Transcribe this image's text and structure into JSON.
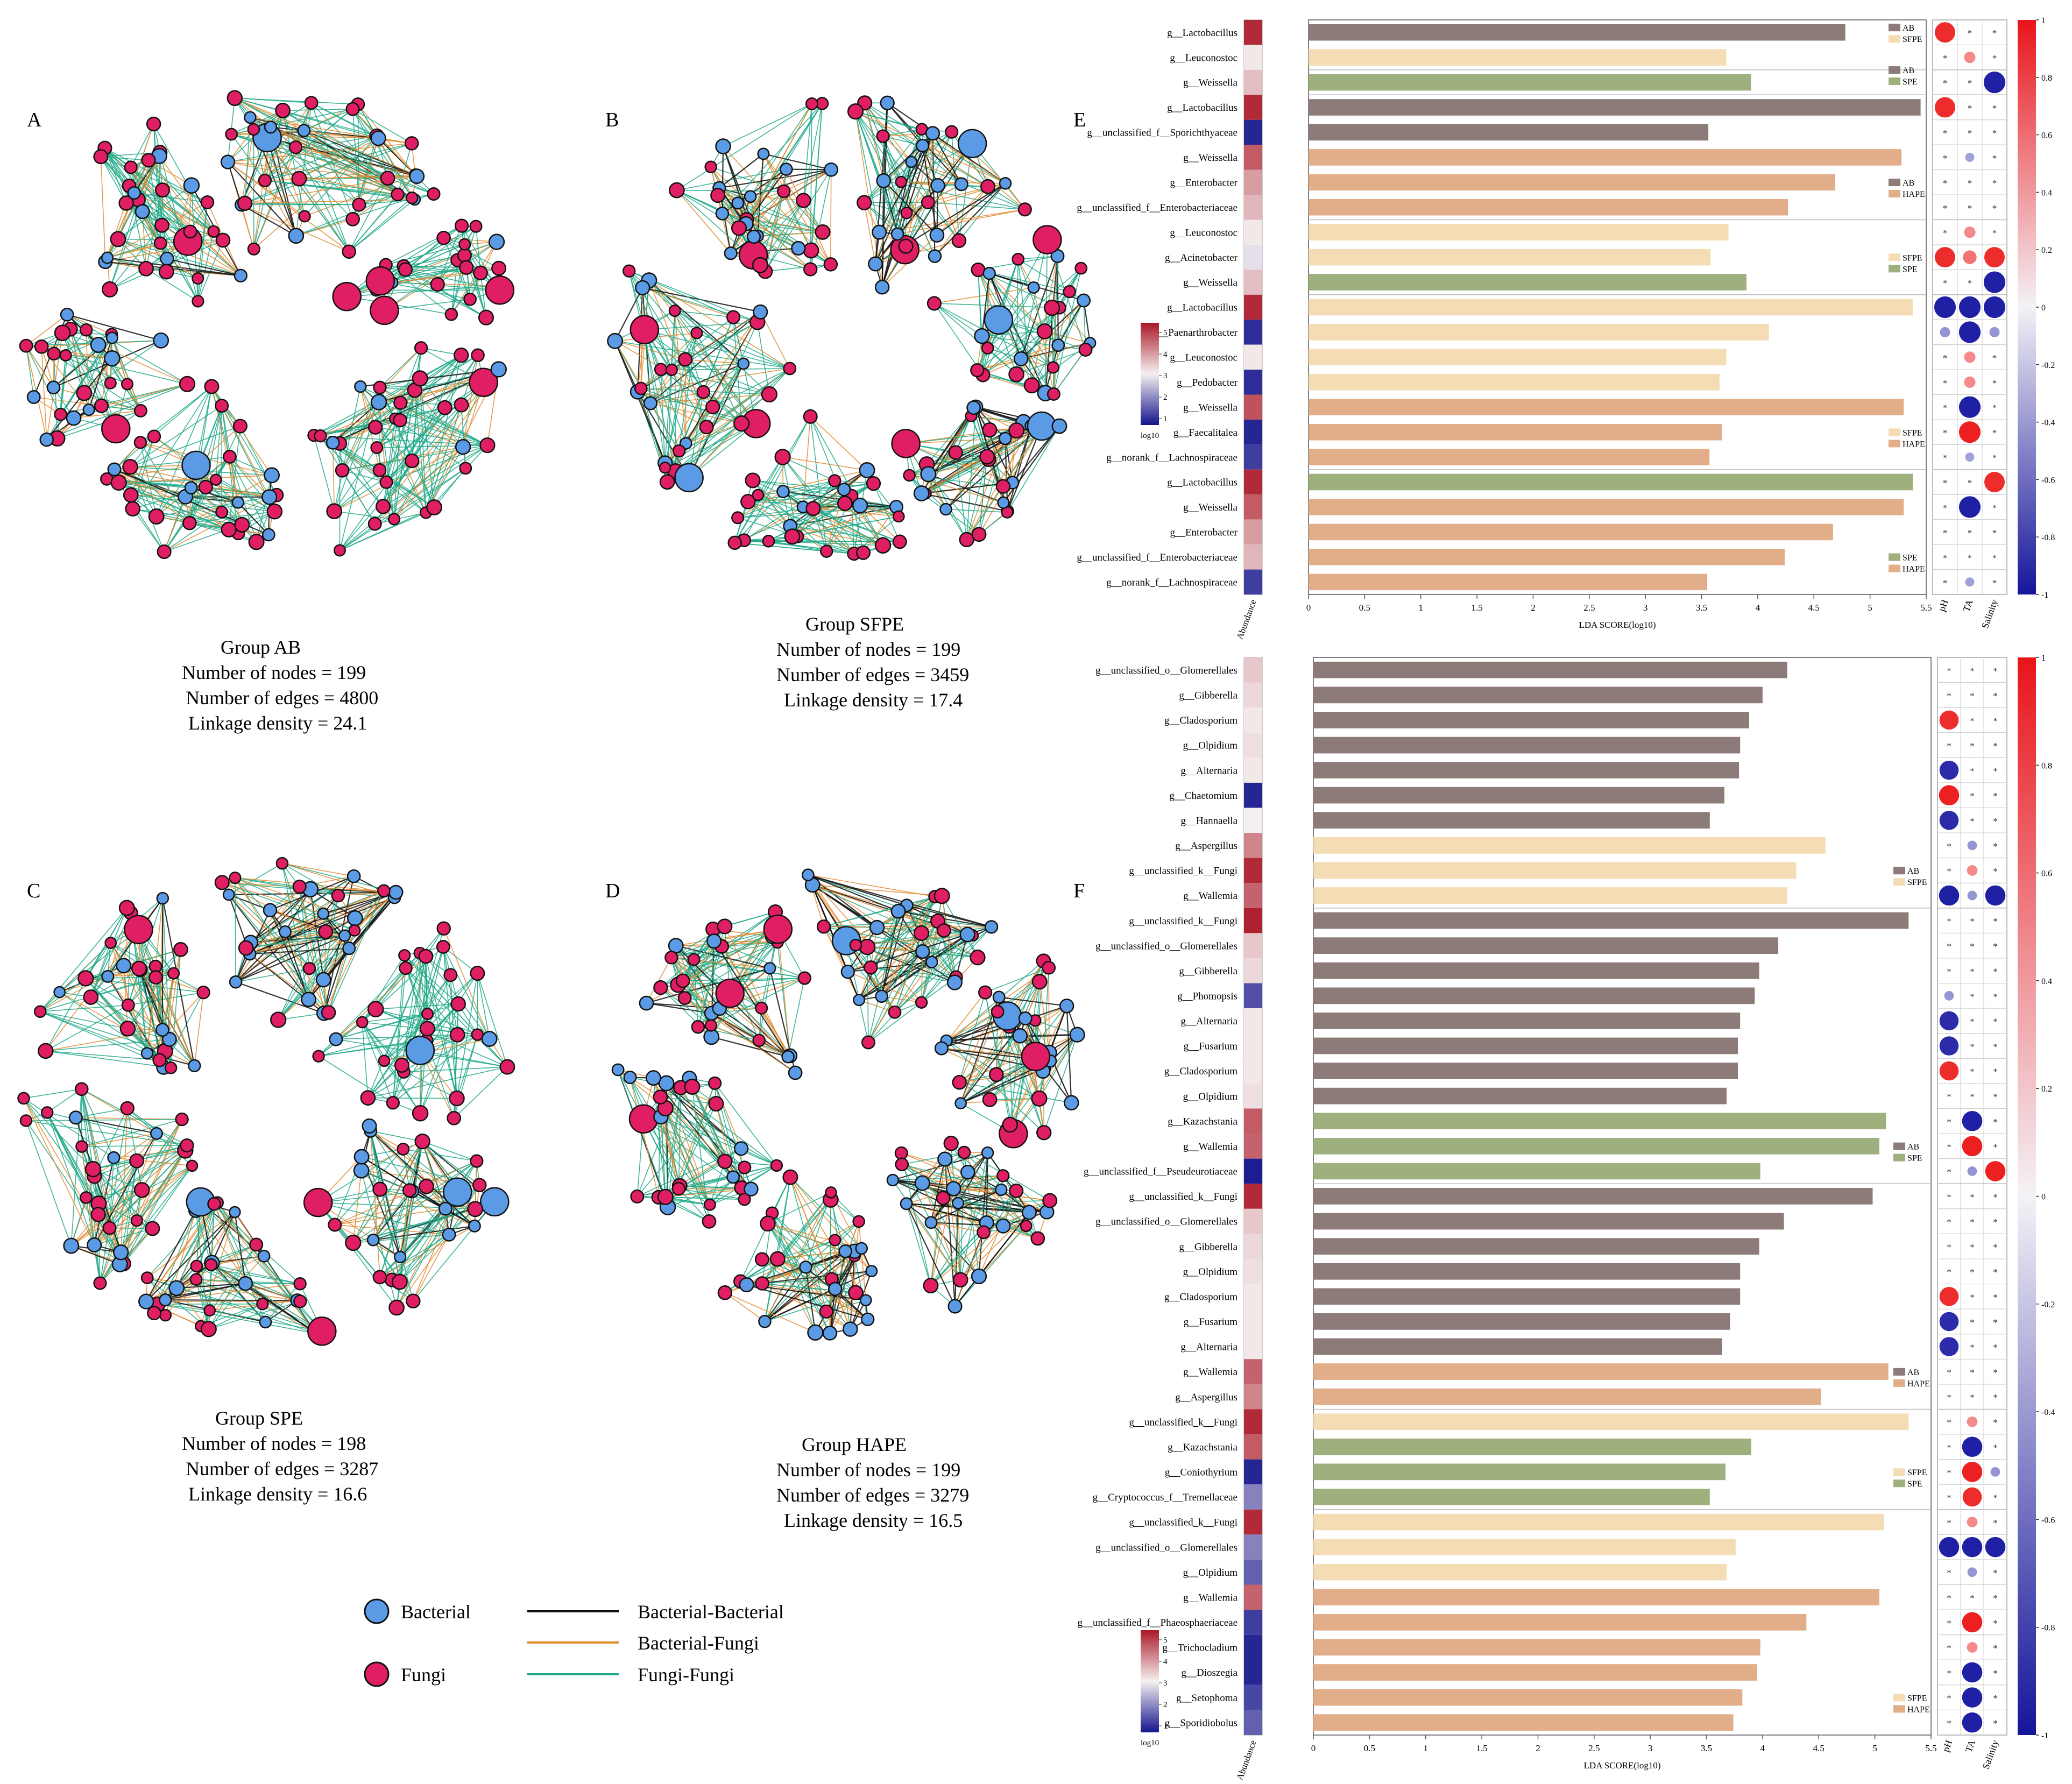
{
  "colors": {
    "bacterial": "#5B9BE6",
    "fungi": "#E01E63",
    "bb": "#111111",
    "bf": "#E08A2E",
    "ff": "#1FA887",
    "AB": "#8C7B78",
    "SFPE": "#F4DDB4",
    "SPE": "#9DB07D",
    "HAPE": "#E2AE8A"
  },
  "networks": [
    {
      "letter": "A",
      "group": "Group AB",
      "nodes": "Number of nodes  = 199",
      "edges": "Number of edges =  4800",
      "density": "Linkage density = 24.1"
    },
    {
      "letter": "B",
      "group": "Group SFPE",
      "nodes": "Number of nodes  = 199",
      "edges": "Number of edges = 3459",
      "density": "Linkage density = 17.4"
    },
    {
      "letter": "C",
      "group": "Group SPE",
      "nodes": "Number of nodes  = 198",
      "edges": "Number of edges = 3287",
      "density": "Linkage density = 16.6"
    },
    {
      "letter": "D",
      "group": "Group HAPE",
      "nodes": "Number of nodes  = 199",
      "edges": "Number of edges = 3279",
      "density": "Linkage density = 16.5"
    }
  ],
  "legend": {
    "bacterial": "Bacterial",
    "fungi": "Fungi",
    "bb": "Bacterial-Bacterial",
    "bf": "Bacterial-Fungi",
    "ff": "Fungi-Fungi"
  },
  "panelE": {
    "letter": "E",
    "xlabel": "LDA SCORE(log10)",
    "ticks": [
      "0",
      "0.5",
      "1",
      "1.5",
      "2",
      "2.5",
      "3",
      "3.5",
      "4",
      "4.5",
      "5",
      "5.5"
    ],
    "abundance_label": "Abundance",
    "env": [
      "pH",
      "TA",
      "Salinity"
    ],
    "colorbar_ticks": [
      "1",
      "0.8",
      "0.6",
      "0.4",
      "0.2",
      "0",
      "-0.2",
      "-0.4",
      "-0.6",
      "-0.8",
      "-1"
    ],
    "abund_ticks": [
      "5",
      "4",
      "3",
      "2",
      "1"
    ],
    "abund_label": "log10",
    "rows": [
      {
        "name": "g__Lactobacillus",
        "value": 4.78,
        "group": "AB",
        "abund": 5.3,
        "corr": [
          0.9,
          null,
          null
        ]
      },
      {
        "name": "g__Leuconostoc",
        "value": 3.72,
        "group": "SFPE",
        "abund": 3.0,
        "corr": [
          null,
          0.5,
          null
        ]
      },
      {
        "name": "g__Weissella",
        "value": 3.94,
        "group": "SPE",
        "abund": 3.5,
        "corr": [
          null,
          null,
          -0.95
        ]
      },
      {
        "name": "g__Lactobacillus",
        "value": 5.45,
        "group": "AB",
        "abund": 5.3,
        "corr": [
          0.9,
          null,
          null
        ]
      },
      {
        "name": "g__unclassified_f__Sporichthyaceae",
        "value": 3.56,
        "group": "AB",
        "abund": 0.5,
        "corr": [
          null,
          null,
          null
        ]
      },
      {
        "name": "g__Weissella",
        "value": 5.28,
        "group": "HAPE",
        "abund": 4.7,
        "corr": [
          null,
          -0.4,
          null
        ]
      },
      {
        "name": "g__Enterobacter",
        "value": 4.69,
        "group": "HAPE",
        "abund": 3.9,
        "corr": [
          null,
          null,
          null
        ]
      },
      {
        "name": "g__unclassified_f__Enterobacteriaceae",
        "value": 4.27,
        "group": "HAPE",
        "abund": 3.6,
        "corr": [
          null,
          null,
          null
        ]
      },
      {
        "name": "g__Leuconostoc",
        "value": 3.74,
        "group": "SFPE",
        "abund": 3.0,
        "corr": [
          null,
          0.5,
          null
        ]
      },
      {
        "name": "g__Acinetobacter",
        "value": 3.58,
        "group": "SFPE",
        "abund": 2.7,
        "corr": [
          0.9,
          0.6,
          0.9
        ]
      },
      {
        "name": "g__Weissella",
        "value": 3.9,
        "group": "SPE",
        "abund": 3.5,
        "corr": [
          null,
          null,
          -0.95
        ]
      },
      {
        "name": "g__Lactobacillus",
        "value": 5.38,
        "group": "SFPE",
        "abund": 5.3,
        "corr": [
          -0.95,
          -0.95,
          -0.95
        ]
      },
      {
        "name": "g__Paenarthrobacter",
        "value": 4.1,
        "group": "SFPE",
        "abund": 0.6,
        "corr": [
          -0.45,
          -0.95,
          -0.45
        ]
      },
      {
        "name": "g__Leuconostoc",
        "value": 3.72,
        "group": "SFPE",
        "abund": 3.0,
        "corr": [
          null,
          0.5,
          null
        ]
      },
      {
        "name": "g__Pedobacter",
        "value": 3.66,
        "group": "SFPE",
        "abund": 0.6,
        "corr": [
          null,
          0.5,
          null
        ]
      },
      {
        "name": "g__Weissella",
        "value": 5.3,
        "group": "HAPE",
        "abund": 4.8,
        "corr": [
          null,
          -0.95,
          null
        ]
      },
      {
        "name": "g__Faecalitalea",
        "value": 3.68,
        "group": "HAPE",
        "abund": 0.5,
        "corr": [
          null,
          0.95,
          null
        ]
      },
      {
        "name": "g__norank_f__Lachnospiraceae",
        "value": 3.57,
        "group": "HAPE",
        "abund": 0.8,
        "corr": [
          null,
          -0.4,
          null
        ]
      },
      {
        "name": "g__Lactobacillus",
        "value": 5.38,
        "group": "SPE",
        "abund": 5.3,
        "corr": [
          null,
          null,
          0.9
        ]
      },
      {
        "name": "g__Weissella",
        "value": 5.3,
        "group": "HAPE",
        "abund": 4.7,
        "corr": [
          null,
          -0.95,
          null
        ]
      },
      {
        "name": "g__Enterobacter",
        "value": 4.67,
        "group": "HAPE",
        "abund": 3.9,
        "corr": [
          null,
          null,
          null
        ]
      },
      {
        "name": "g__unclassified_f__Enterobacteriaceae",
        "value": 4.24,
        "group": "HAPE",
        "abund": 3.6,
        "corr": [
          null,
          null,
          null
        ]
      },
      {
        "name": "g__norank_f__Lachnospiraceae",
        "value": 3.55,
        "group": "HAPE",
        "abund": 0.8,
        "corr": [
          null,
          -0.4,
          null
        ]
      }
    ],
    "sections": [
      {
        "start": 0,
        "end": 2,
        "legend": [
          "AB",
          "SFPE"
        ],
        "legend_row": 0.8
      },
      {
        "start": 2,
        "end": 2,
        "legend": [
          "AB",
          "SPE"
        ],
        "legend_row": 2.5
      },
      {
        "start": 3,
        "end": 7,
        "legend": [
          "AB",
          "HAPE"
        ],
        "legend_row": 7
      },
      {
        "start": 8,
        "end": 10,
        "legend": [
          "SFPE",
          "SPE"
        ],
        "legend_row": 10
      },
      {
        "start": 11,
        "end": 17,
        "legend": [
          "SFPE",
          "HAPE"
        ],
        "legend_row": 17
      },
      {
        "start": 18,
        "end": 22,
        "legend": [
          "SPE",
          "HAPE"
        ],
        "legend_row": 22
      }
    ]
  },
  "panelF": {
    "letter": "F",
    "xlabel": "LDA SCORE(log10)",
    "ticks": [
      "0",
      "0.5",
      "1",
      "1.5",
      "2",
      "2.5",
      "3",
      "3.5",
      "4",
      "4.5",
      "5",
      "5.5"
    ],
    "abundance_label": "Abundance",
    "env": [
      "pH",
      "TA",
      "Salinity"
    ],
    "colorbar_ticks": [
      "1",
      "0.8",
      "0.6",
      "0.4",
      "0.2",
      "0",
      "-0.2",
      "-0.4",
      "-0.6",
      "-0.8",
      "-1"
    ],
    "abund_ticks": [
      "5",
      "4",
      "3",
      "2",
      "1"
    ],
    "abund_label": "log10",
    "rows": [
      {
        "name": "g__unclassified_o__Glomerellales",
        "value": 4.22,
        "group": "AB",
        "abund": 3.4,
        "corr": [
          null,
          null,
          null
        ]
      },
      {
        "name": "g__Gibberella",
        "value": 4.0,
        "group": "AB",
        "abund": 3.2,
        "corr": [
          null,
          null,
          null
        ]
      },
      {
        "name": "g__Cladosporium",
        "value": 3.88,
        "group": "AB",
        "abund": 3.0,
        "corr": [
          0.9,
          null,
          null
        ]
      },
      {
        "name": "g__Olpidium",
        "value": 3.8,
        "group": "AB",
        "abund": 3.1,
        "corr": [
          null,
          null,
          null
        ]
      },
      {
        "name": "g__Alternaria",
        "value": 3.79,
        "group": "AB",
        "abund": 3.0,
        "corr": [
          -0.9,
          null,
          null
        ]
      },
      {
        "name": "g__Chaetomium",
        "value": 3.66,
        "group": "AB",
        "abund": 0.5,
        "corr": [
          0.95,
          null,
          null
        ]
      },
      {
        "name": "g__Hannaella",
        "value": 3.53,
        "group": "AB",
        "abund": 2.9,
        "corr": [
          -0.9,
          null,
          null
        ]
      },
      {
        "name": "g__Aspergillus",
        "value": 4.56,
        "group": "SFPE",
        "abund": 4.2,
        "corr": [
          null,
          -0.45,
          null
        ]
      },
      {
        "name": "g__unclassified_k__Fungi",
        "value": 4.3,
        "group": "SFPE",
        "abund": 5.3,
        "corr": [
          null,
          0.5,
          null
        ]
      },
      {
        "name": "g__Wallemia",
        "value": 4.22,
        "group": "SFPE",
        "abund": 4.6,
        "corr": [
          -0.95,
          -0.45,
          -0.95
        ]
      },
      {
        "name": "g__unclassified_k__Fungi",
        "value": 5.3,
        "group": "AB",
        "abund": 5.4,
        "corr": [
          null,
          null,
          null
        ]
      },
      {
        "name": "g__unclassified_o__Glomerellales",
        "value": 4.14,
        "group": "AB",
        "abund": 3.4,
        "corr": [
          null,
          null,
          null
        ]
      },
      {
        "name": "g__Gibberella",
        "value": 3.97,
        "group": "AB",
        "abund": 3.2,
        "corr": [
          null,
          null,
          null
        ]
      },
      {
        "name": "g__Phomopsis",
        "value": 3.93,
        "group": "AB",
        "abund": 1.0,
        "corr": [
          -0.45,
          null,
          null
        ]
      },
      {
        "name": "g__Alternaria",
        "value": 3.8,
        "group": "AB",
        "abund": 3.0,
        "corr": [
          -0.9,
          null,
          null
        ]
      },
      {
        "name": "g__Fusarium",
        "value": 3.78,
        "group": "AB",
        "abund": 3.0,
        "corr": [
          -0.9,
          null,
          null
        ]
      },
      {
        "name": "g__Cladosporium",
        "value": 3.78,
        "group": "AB",
        "abund": 3.0,
        "corr": [
          0.9,
          null,
          null
        ]
      },
      {
        "name": "g__Olpidium",
        "value": 3.68,
        "group": "AB",
        "abund": 3.1,
        "corr": [
          null,
          null,
          null
        ]
      },
      {
        "name": "g__Kazachstania",
        "value": 5.1,
        "group": "SPE",
        "abund": 4.7,
        "corr": [
          null,
          -0.95,
          null
        ]
      },
      {
        "name": "g__Wallemia",
        "value": 5.04,
        "group": "SPE",
        "abund": 4.6,
        "corr": [
          null,
          0.95,
          null
        ]
      },
      {
        "name": "g__unclassified_f__Pseudeurotiaceae",
        "value": 3.98,
        "group": "SPE",
        "abund": 0.4,
        "corr": [
          null,
          -0.45,
          0.95
        ]
      },
      {
        "name": "g__unclassified_k__Fungi",
        "value": 4.98,
        "group": "AB",
        "abund": 5.3,
        "corr": [
          null,
          null,
          null
        ]
      },
      {
        "name": "g__unclassified_o__Glomerellales",
        "value": 4.19,
        "group": "AB",
        "abund": 3.4,
        "corr": [
          null,
          null,
          null
        ]
      },
      {
        "name": "g__Gibberella",
        "value": 3.97,
        "group": "AB",
        "abund": 3.2,
        "corr": [
          null,
          null,
          null
        ]
      },
      {
        "name": "g__Olpidium",
        "value": 3.8,
        "group": "AB",
        "abund": 3.1,
        "corr": [
          null,
          null,
          null
        ]
      },
      {
        "name": "g__Cladosporium",
        "value": 3.8,
        "group": "AB",
        "abund": 3.0,
        "corr": [
          0.9,
          null,
          null
        ]
      },
      {
        "name": "g__Fusarium",
        "value": 3.71,
        "group": "AB",
        "abund": 3.0,
        "corr": [
          -0.9,
          null,
          null
        ]
      },
      {
        "name": "g__Alternaria",
        "value": 3.64,
        "group": "AB",
        "abund": 3.0,
        "corr": [
          -0.9,
          null,
          null
        ]
      },
      {
        "name": "g__Wallemia",
        "value": 5.12,
        "group": "HAPE",
        "abund": 4.6,
        "corr": [
          null,
          null,
          null
        ]
      },
      {
        "name": "g__Aspergillus",
        "value": 4.52,
        "group": "HAPE",
        "abund": 4.2,
        "corr": [
          null,
          null,
          null
        ]
      },
      {
        "name": "g__unclassified_k__Fungi",
        "value": 5.3,
        "group": "SFPE",
        "abund": 5.3,
        "corr": [
          null,
          0.5,
          null
        ]
      },
      {
        "name": "g__Kazachstania",
        "value": 3.9,
        "group": "SPE",
        "abund": 4.7,
        "corr": [
          null,
          -0.95,
          null
        ]
      },
      {
        "name": "g__Coniothyrium",
        "value": 3.67,
        "group": "SPE",
        "abund": 0.5,
        "corr": [
          null,
          0.95,
          -0.45
        ]
      },
      {
        "name": "g__Cryptococcus_f__Tremellaceae",
        "value": 3.53,
        "group": "SPE",
        "abund": 1.6,
        "corr": [
          null,
          0.9,
          null
        ]
      },
      {
        "name": "g__unclassified_k__Fungi",
        "value": 5.08,
        "group": "SFPE",
        "abund": 5.3,
        "corr": [
          null,
          0.5,
          null
        ]
      },
      {
        "name": "g__unclassified_o__Glomerellales",
        "value": 3.76,
        "group": "SFPE",
        "abund": 1.6,
        "corr": [
          -0.95,
          -0.95,
          -0.95
        ]
      },
      {
        "name": "g__Olpidium",
        "value": 3.68,
        "group": "SFPE",
        "abund": 1.2,
        "corr": [
          null,
          -0.45,
          null
        ]
      },
      {
        "name": "g__Wallemia",
        "value": 5.04,
        "group": "HAPE",
        "abund": 4.6,
        "corr": [
          null,
          null,
          null
        ]
      },
      {
        "name": "g__unclassified_f__Phaeosphaeriaceae",
        "value": 4.39,
        "group": "HAPE",
        "abund": 0.8,
        "corr": [
          null,
          0.95,
          null
        ]
      },
      {
        "name": "g__Trichocladium",
        "value": 3.98,
        "group": "HAPE",
        "abund": 0.5,
        "corr": [
          null,
          0.5,
          null
        ]
      },
      {
        "name": "g__Dioszegia",
        "value": 3.95,
        "group": "HAPE",
        "abund": 0.5,
        "corr": [
          null,
          -0.95,
          null
        ]
      },
      {
        "name": "g__Setophoma",
        "value": 3.82,
        "group": "HAPE",
        "abund": 0.9,
        "corr": [
          null,
          -0.95,
          null
        ]
      },
      {
        "name": "g__Sporidiobolus",
        "value": 3.74,
        "group": "HAPE",
        "abund": 1.2,
        "corr": [
          null,
          -0.95,
          null
        ]
      }
    ],
    "sections": [
      {
        "start": 0,
        "end": 9,
        "legend": [
          "AB",
          "SFPE"
        ],
        "legend_row": 9
      },
      {
        "start": 10,
        "end": 20,
        "legend": [
          "AB",
          "SPE"
        ],
        "legend_row": 20
      },
      {
        "start": 21,
        "end": 29,
        "legend": [
          "AB",
          "HAPE"
        ],
        "legend_row": 29
      },
      {
        "start": 30,
        "end": 33,
        "legend": [
          "SFPE",
          "SPE"
        ],
        "legend_row": 33
      },
      {
        "start": 34,
        "end": 42,
        "legend": [
          "SFPE",
          "HAPE"
        ],
        "legend_row": 42
      }
    ]
  }
}
